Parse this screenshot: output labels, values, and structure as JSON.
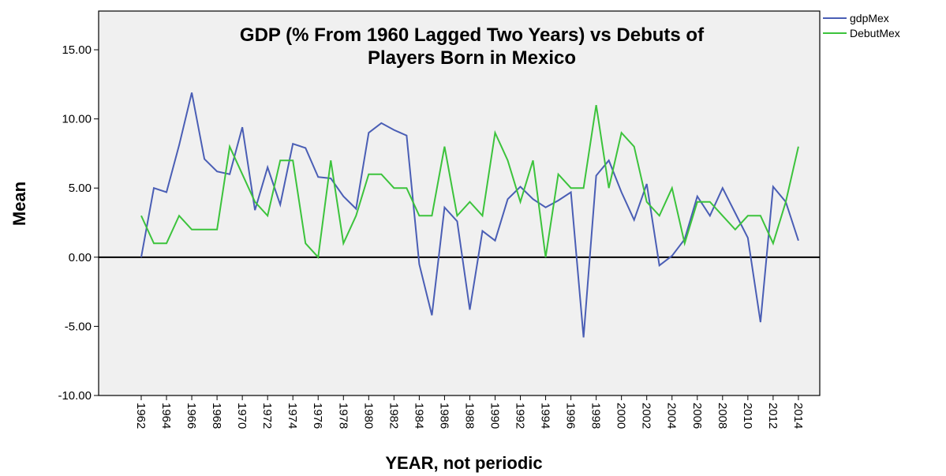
{
  "chart_data": {
    "type": "line",
    "title": [
      "GDP (% From 1960 Lagged Two Years) vs Debuts of",
      "Players Born in Mexico"
    ],
    "x_label": "YEAR, not periodic",
    "y_label": "Mean",
    "x": [
      1962,
      1963,
      1964,
      1965,
      1966,
      1967,
      1968,
      1969,
      1970,
      1971,
      1972,
      1973,
      1974,
      1975,
      1976,
      1977,
      1978,
      1979,
      1980,
      1981,
      1982,
      1983,
      1984,
      1985,
      1986,
      1987,
      1988,
      1989,
      1990,
      1991,
      1992,
      1993,
      1994,
      1995,
      1996,
      1997,
      1998,
      1999,
      2000,
      2001,
      2002,
      2003,
      2004,
      2005,
      2006,
      2007,
      2008,
      2009,
      2010,
      2011,
      2012,
      2013,
      2014
    ],
    "series": [
      {
        "name": "gdpMex",
        "color": "#4a5eb5",
        "values": [
          0,
          5.0,
          4.7,
          8.1,
          11.9,
          7.1,
          6.2,
          6.0,
          9.4,
          3.4,
          6.5,
          3.8,
          8.2,
          7.9,
          5.8,
          5.7,
          4.4,
          3.5,
          9.0,
          9.7,
          9.2,
          8.8,
          -0.5,
          -4.2,
          3.6,
          2.6,
          -3.8,
          1.9,
          1.2,
          4.2,
          5.1,
          4.2,
          3.6,
          4.1,
          4.7,
          -5.8,
          5.9,
          7.0,
          4.7,
          2.7,
          5.3,
          -0.6,
          0.1,
          1.3,
          4.4,
          3.0,
          5.0,
          3.2,
          1.4,
          -4.7,
          5.1,
          4.0,
          1.2
        ]
      },
      {
        "name": "DebutMex",
        "color": "#3cc33c",
        "values": [
          3,
          1,
          1,
          3,
          2,
          2,
          2,
          8,
          6,
          4,
          3,
          7,
          7,
          1,
          0,
          7,
          1,
          3,
          6,
          6,
          5,
          5,
          3,
          3,
          8,
          3,
          4,
          3,
          9,
          7,
          4,
          7,
          0,
          6,
          5,
          5,
          11,
          5,
          9,
          8,
          4,
          3,
          5,
          1,
          4,
          4,
          3,
          2,
          3,
          3,
          1,
          4,
          8
        ]
      }
    ],
    "xlim": [
      1958.63,
      2015.69
    ],
    "xticks": [
      1962,
      1964,
      1966,
      1968,
      1970,
      1972,
      1974,
      1976,
      1978,
      1980,
      1982,
      1984,
      1986,
      1988,
      1990,
      1992,
      1994,
      1996,
      1998,
      2000,
      2002,
      2004,
      2006,
      2008,
      2010,
      2012,
      2014
    ],
    "ylim": [
      -10,
      17.8
    ],
    "yticks": [
      {
        "value": -10,
        "label": "-10.00"
      },
      {
        "value": -5,
        "label": "-5.00"
      },
      {
        "value": 0,
        "label": "0.00"
      },
      {
        "value": 5,
        "label": "5.00"
      },
      {
        "value": 10,
        "label": "10.00"
      },
      {
        "value": 15,
        "label": "15.00"
      }
    ],
    "zero_line": true,
    "legend": "top-right"
  }
}
